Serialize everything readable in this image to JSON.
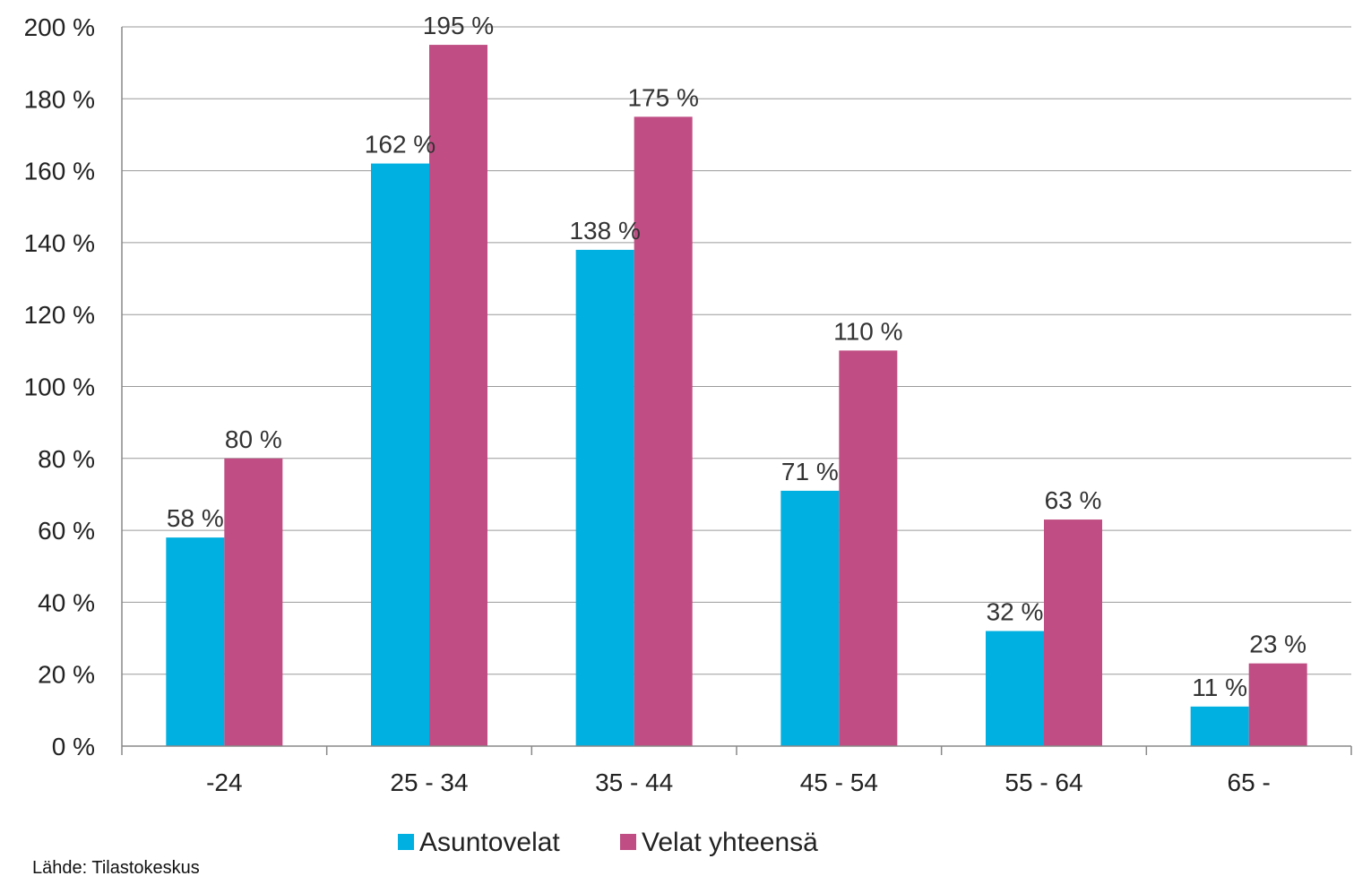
{
  "chart_data": {
    "type": "bar",
    "categories": [
      "-24",
      "25 - 34",
      "35 - 44",
      "45 - 54",
      "55 - 64",
      "65 -"
    ],
    "series": [
      {
        "name": "Asuntovelat",
        "values": [
          58,
          162,
          138,
          71,
          32,
          11
        ],
        "labels": [
          "58 %",
          "162 %",
          "138 %",
          "71 %",
          "32 %",
          "11 %"
        ],
        "color": "#00b0e0"
      },
      {
        "name": "Velat yhteensä",
        "values": [
          80,
          195,
          175,
          110,
          63,
          23
        ],
        "labels": [
          "80 %",
          "195 %",
          "175 %",
          "110 %",
          "63 %",
          "23 %"
        ],
        "color": "#c04e84"
      }
    ],
    "ylim": [
      0,
      200
    ],
    "yticks": [
      0,
      20,
      40,
      60,
      80,
      100,
      120,
      140,
      160,
      180,
      200
    ],
    "ytick_labels": [
      "0 %",
      "20 %",
      "40 %",
      "60 %",
      "80 %",
      "100 %",
      "120 %",
      "140 %",
      "160 %",
      "180 %",
      "200 %"
    ],
    "grid": true,
    "legend_position": "bottom-center",
    "gridline_color": "#9a9a9a"
  },
  "source": "Lähde: Tilastokeskus"
}
